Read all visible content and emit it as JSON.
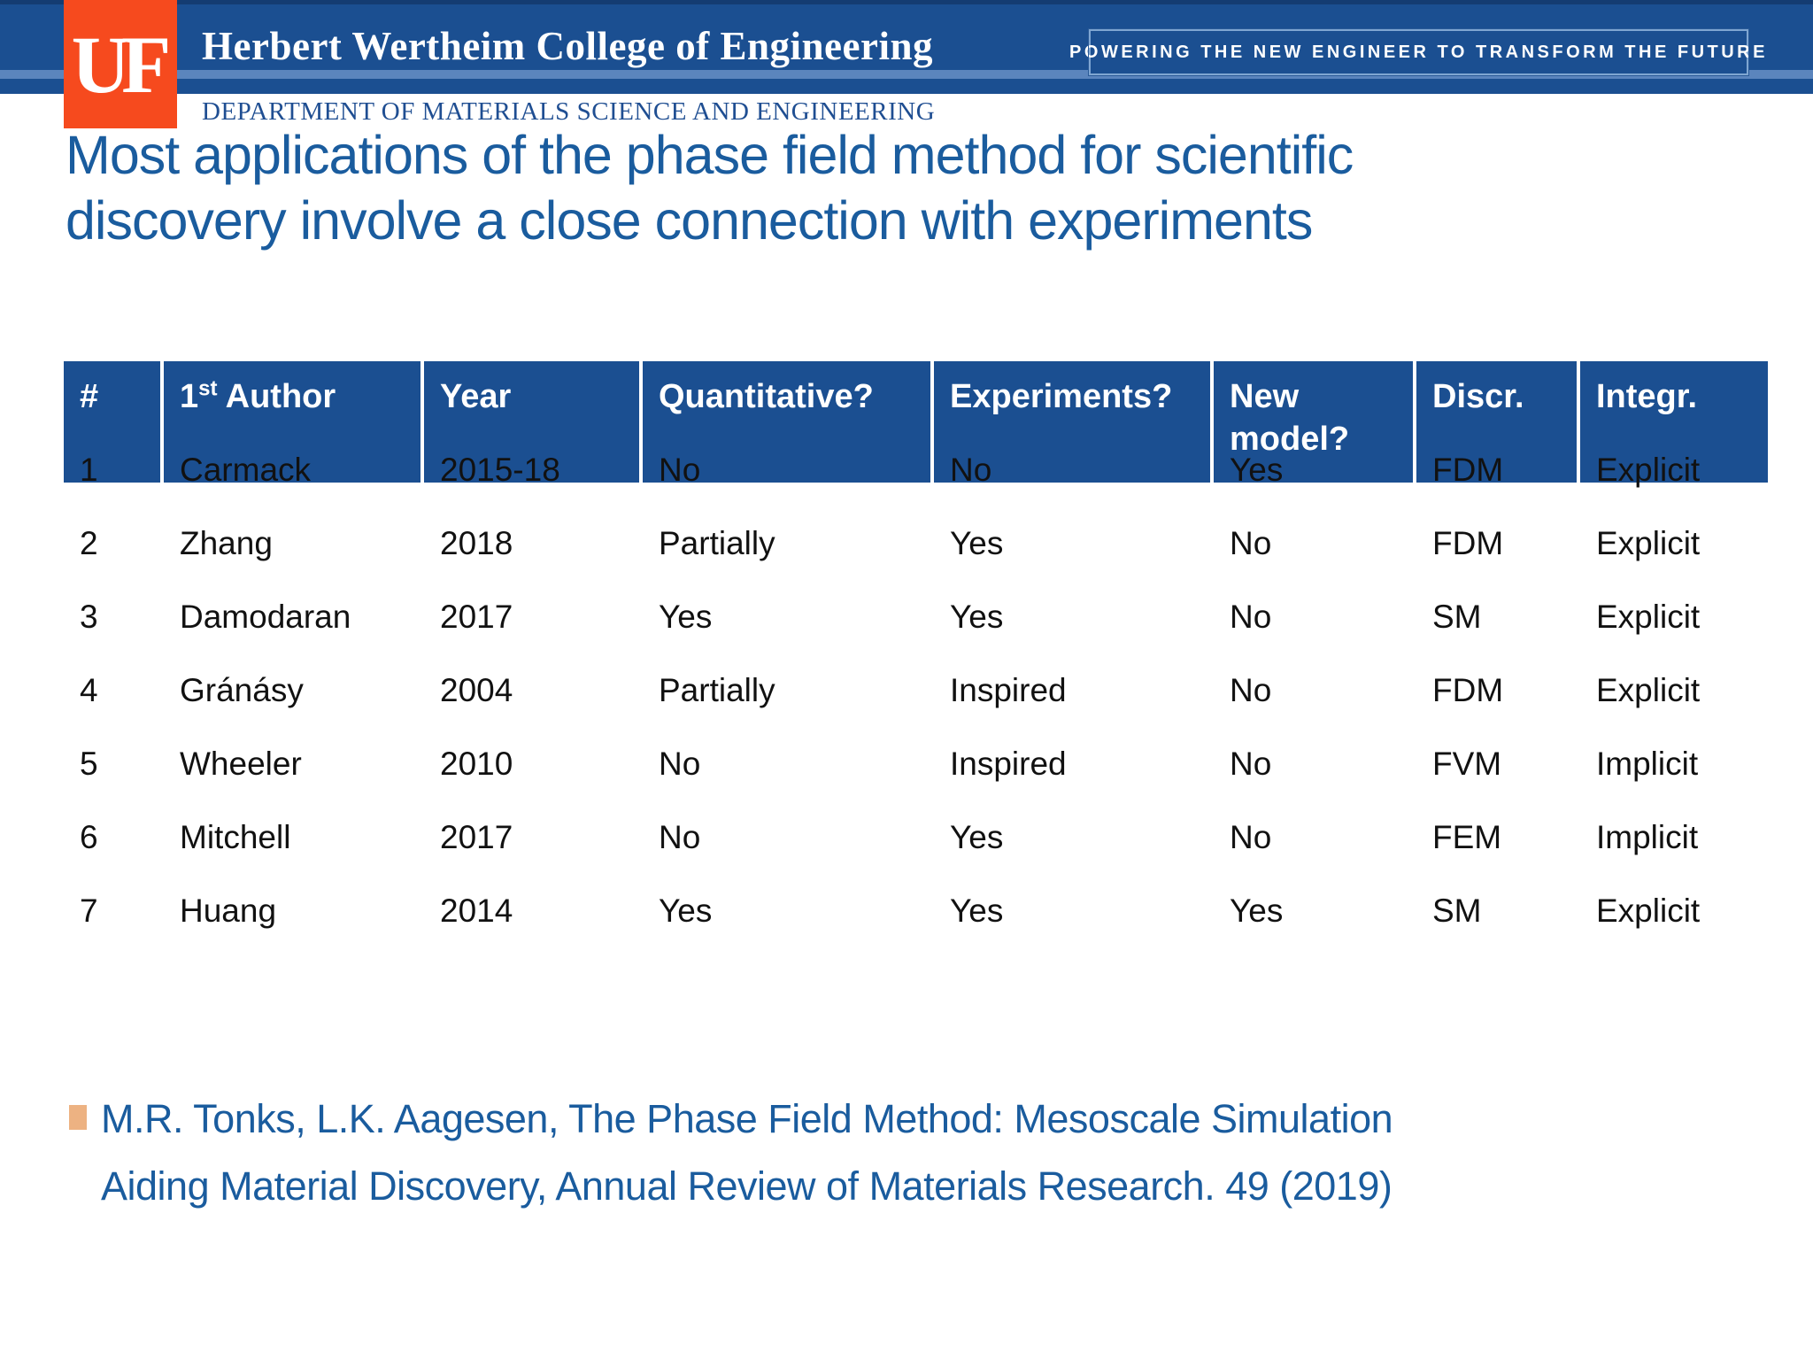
{
  "header": {
    "logo_text": "UF",
    "college": "Herbert Wertheim College of Engineering",
    "tagline": "POWERING THE NEW ENGINEER TO TRANSFORM THE FUTURE",
    "department": "DEPARTMENT OF MATERIALS SCIENCE AND ENGINEERING"
  },
  "title": {
    "lines": [
      "Most applications of the phase field method for scientific",
      "discovery involve a close connection with experiments"
    ]
  },
  "table": {
    "columns": [
      {
        "label": "#"
      },
      {
        "label": "1st Author",
        "superscript": "st"
      },
      {
        "label": "Year"
      },
      {
        "label": "Quantitative?"
      },
      {
        "label": "Experiments?"
      },
      {
        "label": "New model?"
      },
      {
        "label": "Discr."
      },
      {
        "label": "Integr."
      }
    ],
    "rows": [
      {
        "num": "1",
        "author": "Carmack",
        "year": "2015-18",
        "quantitative": "No",
        "experiments": "No",
        "new_model": "Yes",
        "discr": "FDM",
        "integr": "Explicit",
        "highlight": "gray"
      },
      {
        "num": "2",
        "author": "Zhang",
        "year": "2018",
        "quantitative": "Partially",
        "experiments": "Yes",
        "new_model": "No",
        "discr": "FDM",
        "integr": "Explicit",
        "highlight": "blue"
      },
      {
        "num": "3",
        "author": "Damodaran",
        "year": "2017",
        "quantitative": "Yes",
        "experiments": "Yes",
        "new_model": "No",
        "discr": "SM",
        "integr": "Explicit",
        "highlight": "blue"
      },
      {
        "num": "4",
        "author": "Gránásy",
        "year": "2004",
        "quantitative": "Partially",
        "experiments": "Inspired",
        "new_model": "No",
        "discr": "FDM",
        "integr": "Explicit",
        "highlight": "peach"
      },
      {
        "num": "5",
        "author": "Wheeler",
        "year": "2010",
        "quantitative": "No",
        "experiments": "Inspired",
        "new_model": "No",
        "discr": "FVM",
        "integr": "Implicit",
        "highlight": "peach"
      },
      {
        "num": "6",
        "author": "Mitchell",
        "year": "2017",
        "quantitative": "No",
        "experiments": "Yes",
        "new_model": "No",
        "discr": "FEM",
        "integr": "Implicit",
        "highlight": "blue"
      },
      {
        "num": "7",
        "author": "Huang",
        "year": "2014",
        "quantitative": "Yes",
        "experiments": "Yes",
        "new_model": "Yes",
        "discr": "SM",
        "integr": "Explicit",
        "highlight": "blue"
      }
    ]
  },
  "citation": {
    "lines": [
      "M.R. Tonks, L.K. Aagesen, The Phase Field Method: Mesoscale Simulation",
      "Aiding Material Discovery, Annual Review of Materials Research. 49 (2019)"
    ]
  },
  "colors": {
    "band_blue": "#1B4F91",
    "stripe_blue": "#5B85BD",
    "uf_orange": "#F64A1E",
    "title_blue": "#1A5C9E",
    "department_blue": "#1F4E92",
    "row_gray": "#CBCBD8",
    "row_blue": "#BDD9EF",
    "row_peach": "#F2CEAC",
    "bullet_tan": "#EDB282"
  }
}
